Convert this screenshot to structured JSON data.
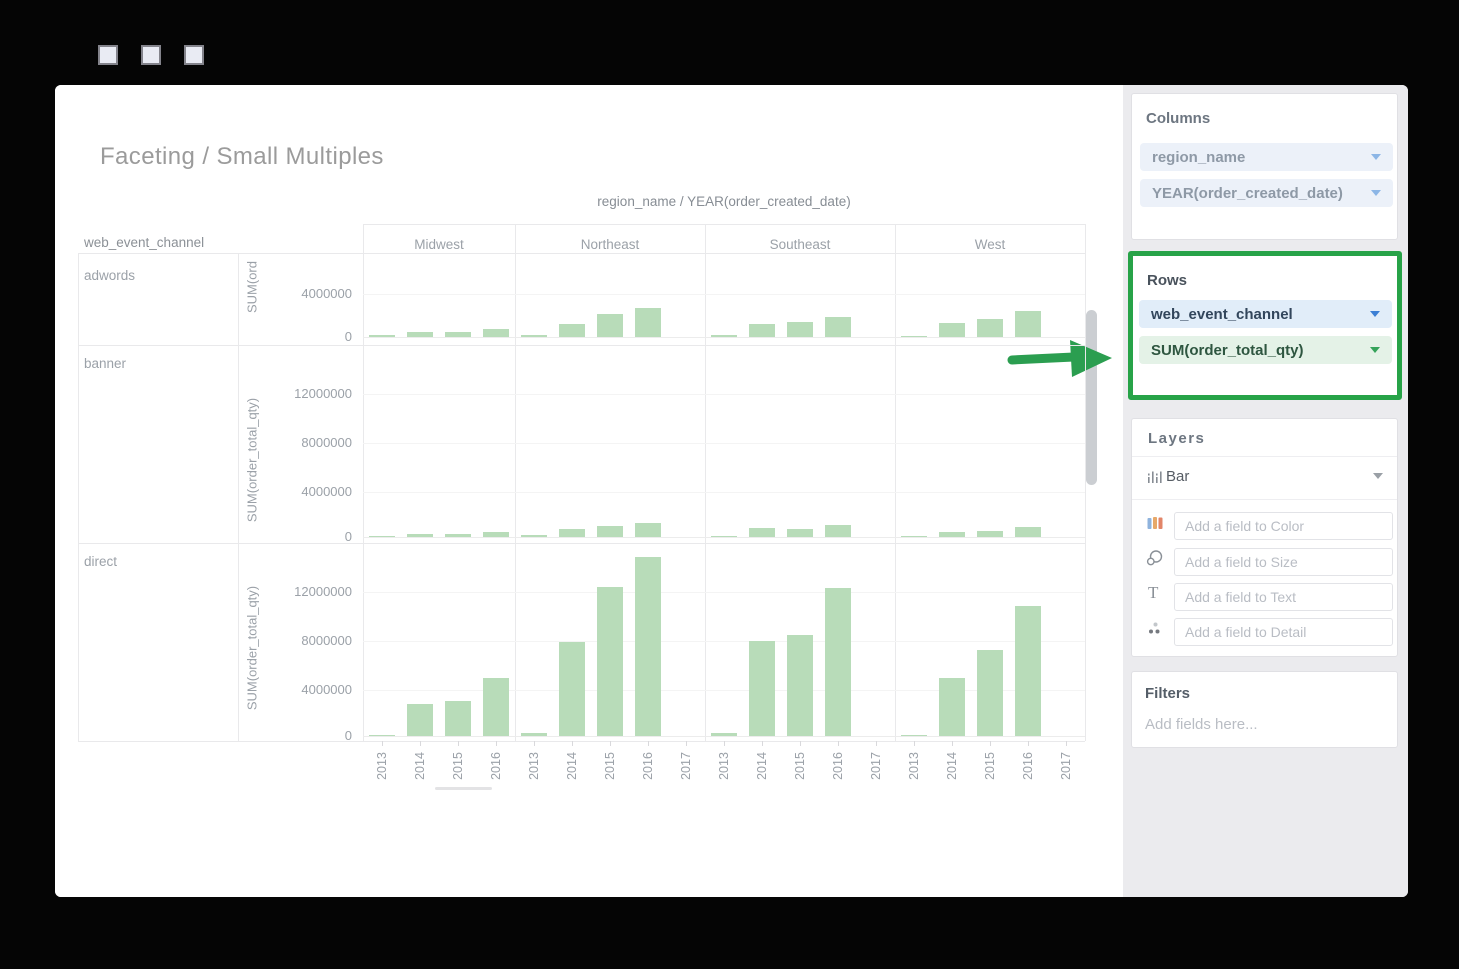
{
  "titlebar": {
    "control_count": 3
  },
  "chart_data": {
    "type": "bar",
    "title": "Faceting / Small Multiples",
    "facet_column_header": "region_name / YEAR(order_created_date)",
    "facet_row_header": "web_event_channel",
    "bar_color": "#b8dcb9",
    "regions": [
      "Midwest",
      "Northeast",
      "Southeast",
      "West"
    ],
    "region_years": [
      [
        "2013",
        "2014",
        "2015",
        "2016"
      ],
      [
        "2013",
        "2014",
        "2015",
        "2016",
        "2017"
      ],
      [
        "2013",
        "2014",
        "2015",
        "2016",
        "2017"
      ],
      [
        "2013",
        "2014",
        "2015",
        "2016",
        "2017"
      ]
    ],
    "ylabel": "SUM(order_total_qty)",
    "rows": [
      {
        "channel": "adwords",
        "y_axis_label": "SUM(ord",
        "y_ticks": [
          "4000000",
          "0"
        ],
        "values": {
          "Midwest": [
            200000,
            470000,
            470000,
            750000
          ],
          "Northeast": [
            190000,
            1200000,
            2140000,
            2700000,
            0
          ],
          "Southeast": [
            190000,
            1180000,
            1400000,
            1870000,
            0
          ],
          "West": [
            120000,
            1300000,
            1670000,
            2420000,
            0
          ]
        }
      },
      {
        "channel": "banner",
        "y_axis_label": "SUM(order_total_qty)",
        "y_ticks": [
          "12000000",
          "8000000",
          "4000000",
          "0"
        ],
        "values": {
          "Midwest": [
            60000,
            280000,
            250000,
            420000
          ],
          "Northeast": [
            130000,
            670000,
            900000,
            1200000,
            0
          ],
          "Southeast": [
            80000,
            760000,
            670000,
            980000,
            0
          ],
          "West": [
            80000,
            390000,
            480000,
            840000,
            0
          ]
        }
      },
      {
        "channel": "direct",
        "y_axis_label": "SUM(order_total_qty)",
        "y_ticks": [
          "12000000",
          "8000000",
          "4000000",
          "0"
        ],
        "values": {
          "Midwest": [
            100000,
            2700000,
            2950000,
            4850000
          ],
          "Northeast": [
            250000,
            7800000,
            12400000,
            14900000,
            0
          ],
          "Southeast": [
            270000,
            7900000,
            8400000,
            12300000,
            0
          ],
          "West": [
            50000,
            4850000,
            7200000,
            10800000,
            0
          ]
        }
      }
    ]
  },
  "sidebar": {
    "columns_panel": {
      "title": "Columns",
      "fields": [
        {
          "label": "region_name"
        },
        {
          "label": "YEAR(order_created_date)"
        }
      ]
    },
    "rows_panel": {
      "title": "Rows",
      "highlight_color": "#27a348",
      "fields": [
        {
          "label": "web_event_channel"
        },
        {
          "label": "SUM(order_total_qty)"
        }
      ]
    },
    "layers_panel": {
      "title": "Layers",
      "layer_type": "Bar",
      "field_slots": [
        {
          "icon": "color-swatch-icon",
          "placeholder": "Add a field to Color"
        },
        {
          "icon": "size-circles-icon",
          "placeholder": "Add a field to Size"
        },
        {
          "icon": "text-icon",
          "placeholder": "Add a field to Text"
        },
        {
          "icon": "detail-dots-icon",
          "placeholder": "Add a field to Detail"
        }
      ]
    },
    "filters_panel": {
      "title": "Filters",
      "placeholder": "Add fields here..."
    }
  }
}
